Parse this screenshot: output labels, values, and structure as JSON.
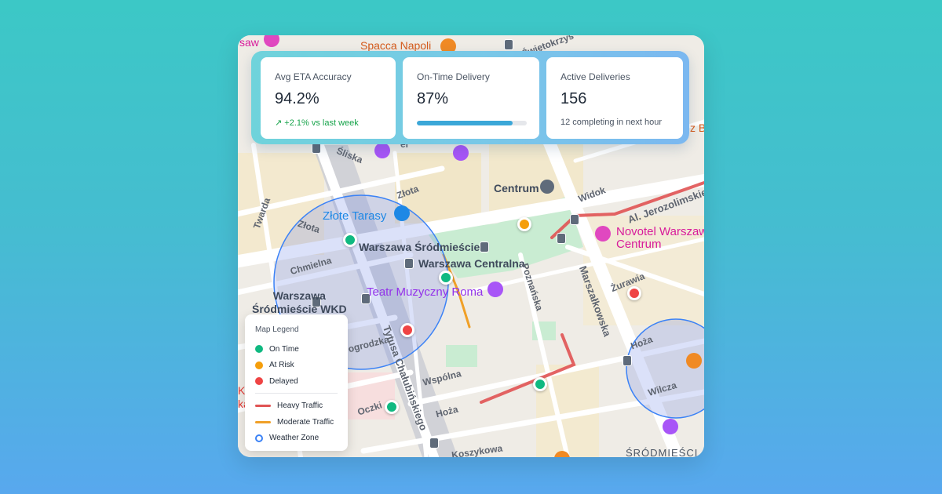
{
  "stats": {
    "eta": {
      "label": "Avg ETA Accuracy",
      "value": "94.2%",
      "trend": "+2.1% vs last week",
      "trend_color": "#16a34a"
    },
    "ontime": {
      "label": "On-Time Delivery",
      "value": "87%",
      "progress": 0.87,
      "progress_color": "#3ba7d8"
    },
    "active": {
      "label": "Active Deliveries",
      "value": "156",
      "sub": "12 completing in next hour"
    }
  },
  "legend": {
    "title": "Map Legend",
    "items": [
      {
        "label": "On Time",
        "color": "#10b981"
      },
      {
        "label": "At Risk",
        "color": "#f59e0b"
      },
      {
        "label": "Delayed",
        "color": "#ef4444"
      },
      {
        "label": "Heavy Traffic",
        "color": "#e05353"
      },
      {
        "label": "Moderate Traffic",
        "color": "#f0a028"
      },
      {
        "label": "Weather Zone",
        "color": "#3b82f6"
      }
    ]
  },
  "map": {
    "pois": {
      "spacca": "Spacca Napoli",
      "zlote_tarasy": "Złote Tarasy",
      "centrum": "Centrum",
      "novotel": "Novotel Warszaw\nCentrum",
      "teatr": "Teatr Muzyczny Roma",
      "sr_station": "Warszawa Śródmieście",
      "centralna": "Warszawa Centralna",
      "wkd": "Warszawa\nŚródmieście WKD",
      "district": "ŚRÓDMIEŚCI"
    },
    "streets": {
      "sliska": "Śliska",
      "zlota1": "Złota",
      "zlota2": "Złota",
      "twarda": "Twarda",
      "chmielna": "Chmielna",
      "widok": "Widok",
      "jerozolimskie": "Al. Jerozolimskie",
      "poznanska": "Poznańska",
      "marszalkowska": "Marszałkowska",
      "zurawia": "Żurawia",
      "hoza1": "Hoża",
      "hoza2": "Hoża",
      "wilcza": "Wilcza",
      "wspolna": "Wspólna",
      "tytusa": "Tytusa Chałubińskiego",
      "nogrodzka": "ogrodzka",
      "oczki": "Oczki",
      "koszykowa": "Koszykowa",
      "swietokrzyska": "Świętokrzys",
      "saw": "saw",
      "er": "er",
      "zb": "z B",
      "kl": "Kl",
      "ka": "ka"
    },
    "markers": [
      {
        "status": "on-time"
      },
      {
        "status": "on-time"
      },
      {
        "status": "on-time"
      },
      {
        "status": "on-time"
      },
      {
        "status": "at-risk"
      },
      {
        "status": "delayed"
      },
      {
        "status": "delayed"
      }
    ]
  }
}
